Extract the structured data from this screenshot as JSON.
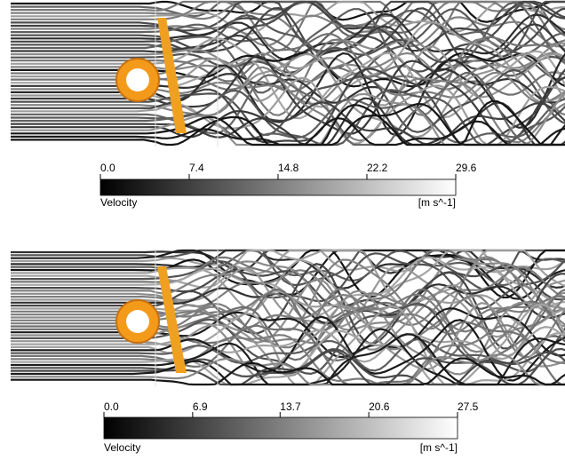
{
  "panels": [
    {
      "colorbar": {
        "range": [
          0,
          29.6
        ],
        "ticks": [
          {
            "value": 0,
            "label": "0.0"
          },
          {
            "value": 7.4,
            "label": "7.4"
          },
          {
            "value": 14.8,
            "label": "14.8"
          },
          {
            "value": 22.2,
            "label": "22.2"
          },
          {
            "value": 29.6,
            "label": "29.6"
          }
        ],
        "label": "Velocity",
        "units": "[m s^-1]"
      }
    },
    {
      "colorbar": {
        "range": [
          0,
          27.5
        ],
        "ticks": [
          {
            "value": 0,
            "label": "0.0"
          },
          {
            "value": 6.9,
            "label": "6.9"
          },
          {
            "value": 13.7,
            "label": "13.7"
          },
          {
            "value": 20.6,
            "label": "20.6"
          },
          {
            "value": 27.5,
            "label": "27.5"
          }
        ],
        "label": "Velocity",
        "units": "[m s^-1]"
      }
    }
  ]
}
